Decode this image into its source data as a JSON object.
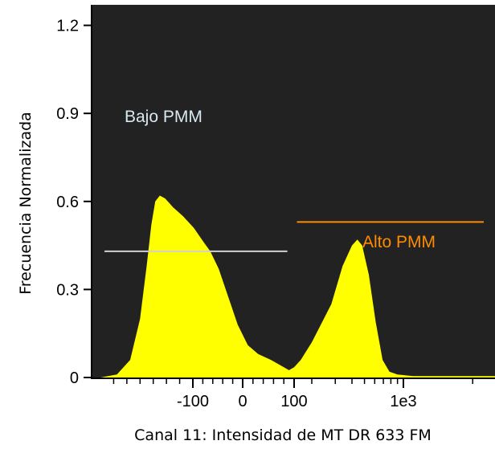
{
  "chart_data": {
    "type": "area",
    "xlabel": "Canal 11: Intensidad de MT DR 633 FM",
    "ylabel": "Frecuencia Normalizada",
    "ylim": [
      0,
      1.27
    ],
    "y_ticks": [
      {
        "value": 0,
        "label": "0"
      },
      {
        "value": 0.3,
        "label": "0.3"
      },
      {
        "value": 0.6,
        "label": "0.6"
      },
      {
        "value": 0.9,
        "label": "0.9"
      },
      {
        "value": 1.2,
        "label": "1.2"
      }
    ],
    "x_ticks": [
      {
        "value": -100,
        "label": "-100"
      },
      {
        "value": 0,
        "label": "0"
      },
      {
        "value": 100,
        "label": "100"
      },
      {
        "value": 1000,
        "label": "1e3"
      }
    ],
    "colors": {
      "plot_background": "#222222",
      "fill": "#ffff00",
      "gate_low": "#d0d0d0",
      "gate_high": "#ff8c00"
    },
    "histogram": {
      "description_units": "x in channel intensity (biexponential axis), y in normalized frequency",
      "points": [
        {
          "x": -240,
          "y": 0.0
        },
        {
          "x": -215,
          "y": 0.01
        },
        {
          "x": -195,
          "y": 0.06
        },
        {
          "x": -180,
          "y": 0.2
        },
        {
          "x": -170,
          "y": 0.38
        },
        {
          "x": -163,
          "y": 0.52
        },
        {
          "x": -157,
          "y": 0.6
        },
        {
          "x": -150,
          "y": 0.62
        },
        {
          "x": -142,
          "y": 0.61
        },
        {
          "x": -130,
          "y": 0.58
        },
        {
          "x": -115,
          "y": 0.55
        },
        {
          "x": -98,
          "y": 0.51
        },
        {
          "x": -82,
          "y": 0.47
        },
        {
          "x": -65,
          "y": 0.43
        },
        {
          "x": -48,
          "y": 0.37
        },
        {
          "x": -30,
          "y": 0.28
        },
        {
          "x": -10,
          "y": 0.18
        },
        {
          "x": 10,
          "y": 0.11
        },
        {
          "x": 30,
          "y": 0.08
        },
        {
          "x": 55,
          "y": 0.06
        },
        {
          "x": 75,
          "y": 0.04
        },
        {
          "x": 90,
          "y": 0.025
        },
        {
          "x": 100,
          "y": 0.035
        },
        {
          "x": 130,
          "y": 0.06
        },
        {
          "x": 200,
          "y": 0.12
        },
        {
          "x": 280,
          "y": 0.25
        },
        {
          "x": 340,
          "y": 0.38
        },
        {
          "x": 400,
          "y": 0.45
        },
        {
          "x": 440,
          "y": 0.47
        },
        {
          "x": 480,
          "y": 0.45
        },
        {
          "x": 540,
          "y": 0.35
        },
        {
          "x": 610,
          "y": 0.19
        },
        {
          "x": 690,
          "y": 0.06
        },
        {
          "x": 780,
          "y": 0.02
        },
        {
          "x": 900,
          "y": 0.01
        },
        {
          "x": 1100,
          "y": 0.005
        },
        {
          "x": 1600,
          "y": 0.005
        },
        {
          "x": 2500,
          "y": 0.005
        }
      ]
    },
    "gates": [
      {
        "label": "Bajo PMM",
        "y": 0.43,
        "x_from": -240,
        "x_to": 90
      },
      {
        "label": "Alto PMM",
        "y": 0.53,
        "x_from": 105,
        "x_to": 2500
      }
    ]
  }
}
